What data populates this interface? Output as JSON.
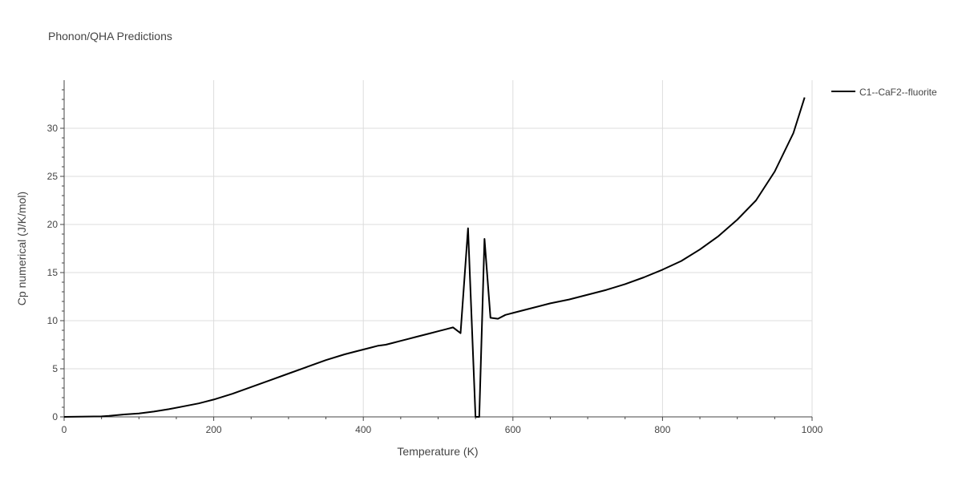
{
  "chart_data": {
    "type": "line",
    "title": "Phonon/QHA Predictions",
    "xlabel": "Temperature (K)",
    "ylabel": "Cp numerical (J/K/mol)",
    "xlim": [
      0,
      1000
    ],
    "ylim": [
      0,
      35
    ],
    "x_ticks": [
      0,
      200,
      400,
      600,
      800,
      1000
    ],
    "y_ticks": [
      0,
      5,
      10,
      15,
      20,
      25,
      30
    ],
    "x_tick_labels": [
      "0",
      "200",
      "400",
      "600",
      "800",
      "1000"
    ],
    "y_tick_labels": [
      "0",
      "5",
      "10",
      "15",
      "20",
      "25",
      "30"
    ],
    "grid": true,
    "legend_position": "top-right",
    "line_color": "#000000",
    "series": [
      {
        "name": "C1--CaF2--fluorite",
        "x": [
          0,
          10,
          20,
          30,
          40,
          50,
          60,
          70,
          80,
          90,
          100,
          120,
          140,
          160,
          180,
          200,
          225,
          250,
          275,
          300,
          325,
          350,
          375,
          390,
          400,
          410,
          420,
          430,
          440,
          450,
          460,
          470,
          480,
          490,
          500,
          510,
          520,
          530,
          540,
          550,
          555,
          562,
          570,
          580,
          590,
          600,
          625,
          650,
          675,
          700,
          725,
          750,
          775,
          800,
          825,
          850,
          875,
          900,
          925,
          950,
          975,
          990
        ],
        "y": [
          0,
          0.01,
          0.02,
          0.03,
          0.04,
          0.05,
          0.1,
          0.18,
          0.25,
          0.3,
          0.35,
          0.55,
          0.8,
          1.1,
          1.4,
          1.8,
          2.4,
          3.1,
          3.8,
          4.5,
          5.2,
          5.9,
          6.5,
          6.8,
          7.0,
          7.2,
          7.4,
          7.5,
          7.7,
          7.9,
          8.1,
          8.3,
          8.5,
          8.7,
          8.9,
          9.1,
          9.3,
          8.7,
          19.6,
          0,
          0,
          18.5,
          10.3,
          10.2,
          10.6,
          10.8,
          11.3,
          11.8,
          12.2,
          12.7,
          13.2,
          13.8,
          14.5,
          15.3,
          16.2,
          17.4,
          18.8,
          20.5,
          22.5,
          25.5,
          29.5,
          33.2
        ]
      }
    ]
  }
}
